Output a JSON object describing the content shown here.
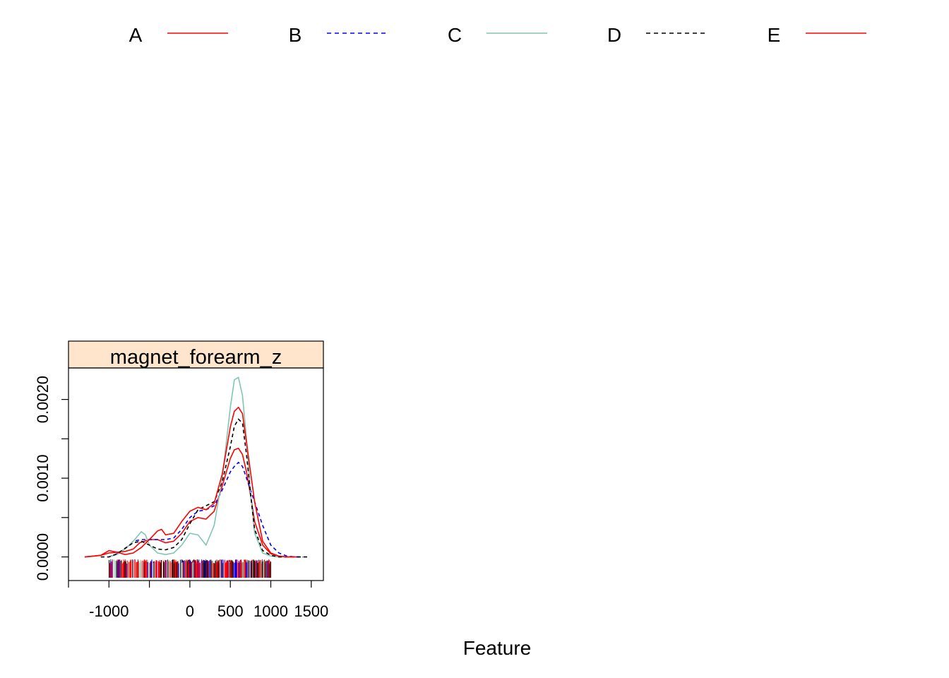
{
  "chart_data": {
    "type": "line",
    "xlabel": "Feature",
    "ylabel": "",
    "panel": {
      "strip_title": "magnet_forearm_z",
      "strip_color": "#ffe5cc"
    },
    "xlim": [
      -1500,
      1650
    ],
    "ylim": [
      -0.0003,
      0.0024
    ],
    "x_ticks": [
      -1000,
      0,
      500,
      1000,
      1500
    ],
    "x_tick_labels": [
      "-1000",
      "0",
      "500",
      "1000",
      "1500"
    ],
    "x_minor_ticks": [
      -1500,
      -1000,
      -500,
      0,
      500,
      1000,
      1500
    ],
    "y_ticks": [
      0.0,
      0.0005,
      0.001,
      0.0015,
      0.002
    ],
    "y_tick_labels": [
      "0.0000",
      "",
      "0.0010",
      "",
      "0.0020"
    ],
    "grid": false,
    "legend": {
      "position": "top",
      "columns": 5
    },
    "series": [
      {
        "name": "A",
        "color": "#ff0000",
        "dash": "solid",
        "x": [
          -1300,
          -1100,
          -1000,
          -900,
          -800,
          -700,
          -620,
          -500,
          -400,
          -300,
          -200,
          -100,
          0,
          100,
          200,
          300,
          400,
          500,
          550,
          600,
          650,
          700,
          750,
          800,
          900,
          1000,
          1100,
          1200,
          1350
        ],
        "y": [
          0.0,
          2e-05,
          5e-05,
          6e-05,
          7e-05,
          0.0001,
          0.00018,
          0.00022,
          0.00022,
          0.00018,
          0.0002,
          0.0003,
          0.00045,
          0.0005,
          0.00048,
          0.00058,
          0.0009,
          0.00125,
          0.00136,
          0.00138,
          0.0013,
          0.00108,
          0.00078,
          0.00045,
          0.00015,
          4e-05,
          1e-05,
          0.0,
          0.0
        ]
      },
      {
        "name": "B",
        "color": "#0000ff",
        "dash": "dashed",
        "x": [
          -1000,
          -900,
          -800,
          -700,
          -600,
          -500,
          -400,
          -300,
          -200,
          -100,
          0,
          100,
          200,
          300,
          400,
          500,
          550,
          600,
          650,
          700,
          800,
          900,
          1000,
          1100,
          1200,
          1300,
          1400
        ],
        "y": [
          0.0,
          4e-05,
          0.0001,
          0.0002,
          0.00022,
          0.00022,
          0.00022,
          0.00022,
          0.00024,
          0.00035,
          0.0005,
          0.00058,
          0.0006,
          0.00065,
          0.00085,
          0.00108,
          0.00115,
          0.0012,
          0.00115,
          0.001,
          0.0007,
          0.0004,
          0.00015,
          5e-05,
          1e-05,
          0.0,
          0.0
        ]
      },
      {
        "name": "C",
        "color": "#7fc7b4",
        "dash": "solid",
        "x": [
          -1000,
          -900,
          -800,
          -700,
          -600,
          -550,
          -500,
          -400,
          -300,
          -200,
          -100,
          0,
          100,
          200,
          300,
          400,
          500,
          550,
          600,
          650,
          700,
          750,
          800,
          900,
          1000,
          1100,
          1300
        ],
        "y": [
          0.0,
          3e-05,
          0.0001,
          0.0002,
          0.00032,
          0.00028,
          0.00015,
          5e-05,
          3e-05,
          5e-05,
          0.00015,
          0.0003,
          0.00028,
          0.00015,
          0.0004,
          0.001,
          0.0019,
          0.00225,
          0.00228,
          0.00205,
          0.0015,
          0.0008,
          0.0003,
          5e-05,
          1e-05,
          0.0,
          0.0
        ]
      },
      {
        "name": "D",
        "color": "#000000",
        "dash": "dashed",
        "x": [
          -1100,
          -1000,
          -900,
          -800,
          -700,
          -600,
          -500,
          -400,
          -300,
          -200,
          -100,
          0,
          100,
          200,
          300,
          400,
          500,
          550,
          600,
          650,
          700,
          750,
          800,
          900,
          1000,
          1100,
          1300,
          1450
        ],
        "y": [
          0.0,
          0.0,
          4e-05,
          0.00011,
          0.00018,
          0.0002,
          0.00015,
          0.0001,
          9e-05,
          0.00012,
          0.00022,
          0.00042,
          0.0006,
          0.00065,
          0.0007,
          0.00095,
          0.0014,
          0.00166,
          0.00175,
          0.0017,
          0.0013,
          0.0008,
          0.00035,
          8e-05,
          2e-05,
          0.0,
          0.0,
          0.0
        ]
      },
      {
        "name": "E",
        "color": "#ff0000",
        "dash": "solid",
        "x": [
          -1300,
          -1100,
          -1000,
          -900,
          -800,
          -700,
          -600,
          -500,
          -400,
          -350,
          -300,
          -200,
          -100,
          0,
          100,
          200,
          300,
          400,
          500,
          550,
          600,
          650,
          700,
          800,
          900,
          1000,
          1100,
          1200,
          1300
        ],
        "y": [
          0.0,
          2e-05,
          8e-05,
          6e-05,
          3e-05,
          5e-05,
          0.00012,
          0.00022,
          0.00033,
          0.00035,
          0.00028,
          0.0003,
          0.00045,
          0.00058,
          0.00063,
          0.0006,
          0.00068,
          0.00105,
          0.00165,
          0.00185,
          0.0019,
          0.00182,
          0.00145,
          0.0007,
          0.0002,
          5e-05,
          1e-05,
          0.0,
          0.0
        ]
      }
    ]
  }
}
